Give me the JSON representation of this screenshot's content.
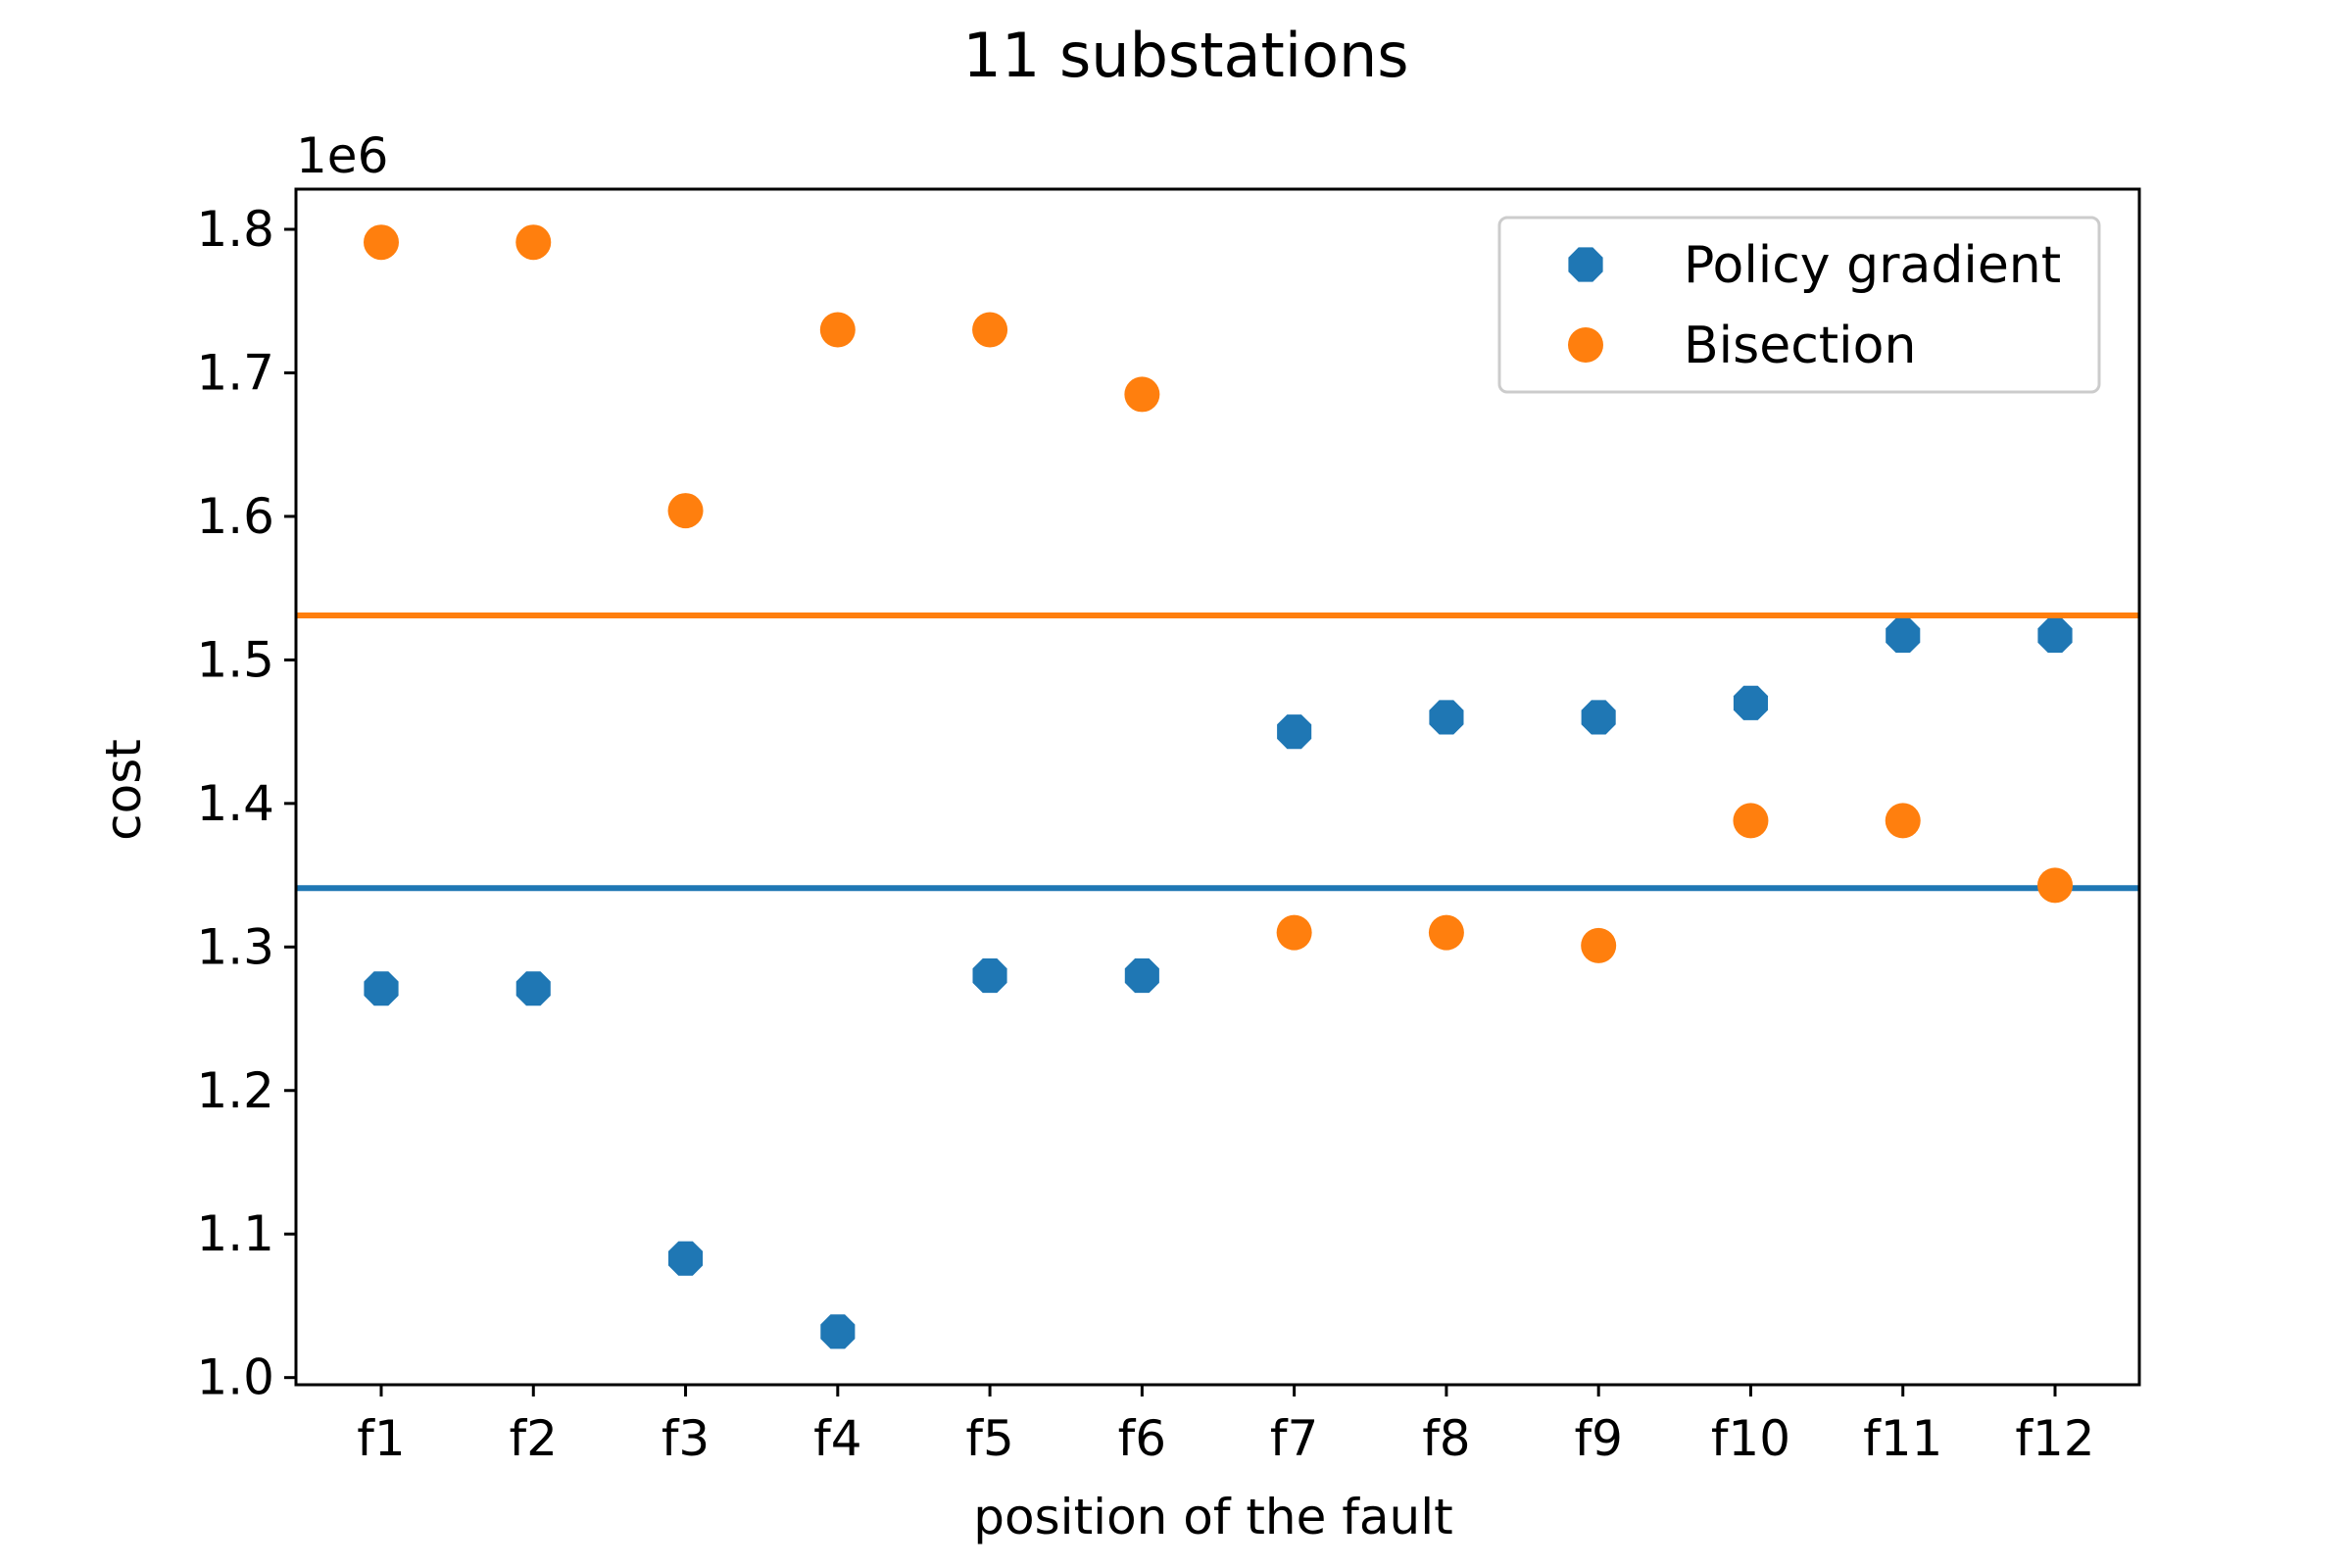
{
  "chart_data": {
    "type": "scatter",
    "title": "11 substations",
    "xlabel": "position of the fault",
    "ylabel": "cost",
    "y_offset_label": "1e6",
    "categories": [
      "f1",
      "f2",
      "f3",
      "f4",
      "f5",
      "f6",
      "f7",
      "f8",
      "f9",
      "f10",
      "f11",
      "f12"
    ],
    "ylim": [
      0.995,
      1.828
    ],
    "yticks": [
      1.0,
      1.1,
      1.2,
      1.3,
      1.4,
      1.5,
      1.6,
      1.7,
      1.8
    ],
    "ytick_labels": [
      "1.0",
      "1.1",
      "1.2",
      "1.3",
      "1.4",
      "1.5",
      "1.6",
      "1.7",
      "1.8"
    ],
    "grid": false,
    "legend_position": "top-right",
    "series": [
      {
        "name": "Policy gradient",
        "color": "#1f77b4",
        "marker": "octagon",
        "values": [
          1.271,
          1.271,
          1.083,
          1.032,
          1.28,
          1.28,
          1.45,
          1.46,
          1.46,
          1.47,
          1.517,
          1.517
        ],
        "mean_line": 1.341
      },
      {
        "name": "Bisection",
        "color": "#ff7f0e",
        "marker": "circle",
        "values": [
          1.791,
          1.791,
          1.604,
          1.73,
          1.73,
          1.685,
          1.31,
          1.31,
          1.301,
          1.388,
          1.388,
          1.343
        ],
        "mean_line": 1.531
      }
    ]
  }
}
